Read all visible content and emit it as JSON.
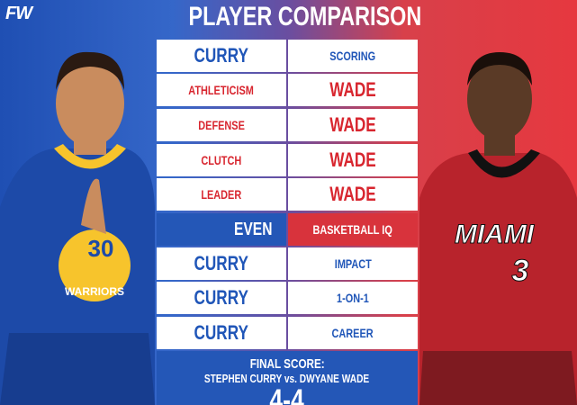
{
  "logo": "FW",
  "title": "PLAYER COMPARISON",
  "rows": [
    [
      "CURRY",
      "SCORING"
    ],
    [
      "ATHLETICISM",
      "WADE"
    ],
    [
      "DEFENSE",
      "WADE"
    ],
    [
      "CLUTCH",
      "WADE"
    ],
    [
      "LEADER",
      "WADE"
    ],
    [
      "EVEN",
      "BASKETBALL IQ"
    ],
    [
      "CURRY",
      "IMPACT"
    ],
    [
      "CURRY",
      "1-ON-1"
    ],
    [
      "CURRY",
      "CAREER"
    ]
  ],
  "footer": {
    "label": "FINAL SCORE:",
    "matchup": "STEPHEN CURRY vs. DWYANE WADE",
    "score": "4-4"
  },
  "players": {
    "curry": {
      "team": "WARRIORS",
      "number": "30"
    },
    "wade": {
      "team": "MIAMI",
      "number": "3"
    }
  }
}
